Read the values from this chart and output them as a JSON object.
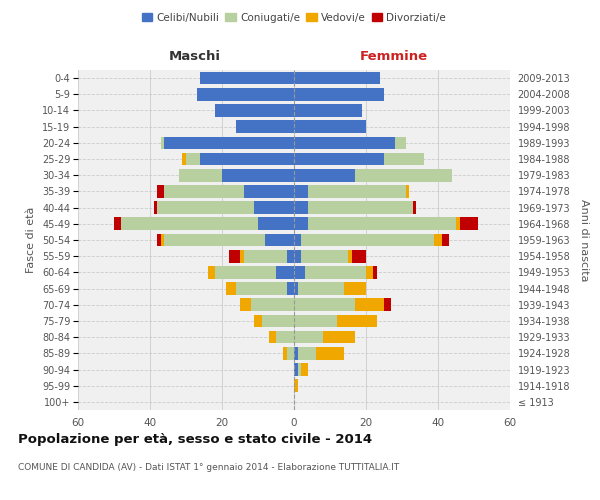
{
  "age_groups": [
    "100+",
    "95-99",
    "90-94",
    "85-89",
    "80-84",
    "75-79",
    "70-74",
    "65-69",
    "60-64",
    "55-59",
    "50-54",
    "45-49",
    "40-44",
    "35-39",
    "30-34",
    "25-29",
    "20-24",
    "15-19",
    "10-14",
    "5-9",
    "0-4"
  ],
  "birth_years": [
    "≤ 1913",
    "1914-1918",
    "1919-1923",
    "1924-1928",
    "1929-1933",
    "1934-1938",
    "1939-1943",
    "1944-1948",
    "1949-1953",
    "1954-1958",
    "1959-1963",
    "1964-1968",
    "1969-1973",
    "1974-1978",
    "1979-1983",
    "1984-1988",
    "1989-1993",
    "1994-1998",
    "1999-2003",
    "2004-2008",
    "2009-2013"
  ],
  "male": {
    "celibi": [
      0,
      0,
      0,
      0,
      0,
      0,
      0,
      2,
      5,
      2,
      8,
      10,
      11,
      14,
      20,
      26,
      36,
      16,
      22,
      27,
      26
    ],
    "coniugati": [
      0,
      0,
      0,
      2,
      5,
      9,
      12,
      14,
      17,
      12,
      28,
      38,
      27,
      22,
      12,
      4,
      1,
      0,
      0,
      0,
      0
    ],
    "vedovi": [
      0,
      0,
      0,
      1,
      2,
      2,
      3,
      3,
      2,
      1,
      1,
      0,
      0,
      0,
      0,
      1,
      0,
      0,
      0,
      0,
      0
    ],
    "divorziati": [
      0,
      0,
      0,
      0,
      0,
      0,
      0,
      0,
      0,
      3,
      1,
      2,
      1,
      2,
      0,
      0,
      0,
      0,
      0,
      0,
      0
    ]
  },
  "female": {
    "nubili": [
      0,
      0,
      1,
      1,
      0,
      0,
      0,
      1,
      3,
      2,
      2,
      4,
      4,
      4,
      17,
      25,
      28,
      20,
      19,
      25,
      24
    ],
    "coniugate": [
      0,
      0,
      1,
      5,
      8,
      12,
      17,
      13,
      17,
      13,
      37,
      41,
      29,
      27,
      27,
      11,
      3,
      0,
      0,
      0,
      0
    ],
    "vedove": [
      0,
      1,
      2,
      8,
      9,
      11,
      8,
      6,
      2,
      1,
      2,
      1,
      0,
      1,
      0,
      0,
      0,
      0,
      0,
      0,
      0
    ],
    "divorziate": [
      0,
      0,
      0,
      0,
      0,
      0,
      2,
      0,
      1,
      4,
      2,
      5,
      1,
      0,
      0,
      0,
      0,
      0,
      0,
      0,
      0
    ]
  },
  "colors": {
    "celibi": "#4472c4",
    "coniugati": "#b8cfa0",
    "vedovi": "#f0a800",
    "divorziati": "#c00000"
  },
  "xlim": 60,
  "title": "Popolazione per età, sesso e stato civile - 2014",
  "subtitle": "COMUNE DI CANDIDA (AV) - Dati ISTAT 1° gennaio 2014 - Elaborazione TUTTITALIA.IT",
  "ylabel_left": "Fasce di età",
  "ylabel_right": "Anni di nascita",
  "xlabel_left": "Maschi",
  "xlabel_right": "Femmine",
  "legend_labels": [
    "Celibi/Nubili",
    "Coniugati/e",
    "Vedovi/e",
    "Divorziati/e"
  ],
  "background_color": "#ffffff",
  "ax_background": "#f0f0f0"
}
